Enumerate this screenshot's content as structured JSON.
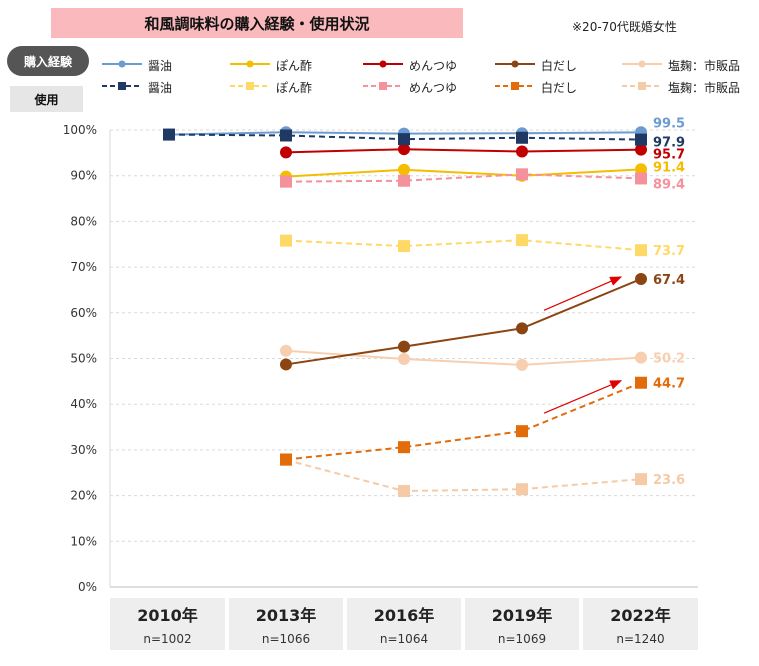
{
  "title": "和風調味料の購入経験・使用状況",
  "note": "※20-70代既婚女性",
  "badges": {
    "purchase": "購入経験",
    "use": "使用"
  },
  "colors": {
    "soy": "#6b9bd0",
    "ponzu": "#f5bd00",
    "mentsuyu": "#c00000",
    "shirodashi": "#8b4513",
    "shiokoji": "#f7cfb0",
    "soy_use": "#1f3864",
    "ponzu_use": "#ffd966",
    "mentsuyu_use": "#f4919a",
    "shirodashi_use": "#e36c0a",
    "shiokoji_use": "#f5cba7",
    "arrow": "#e00000",
    "title_bg": "#f9b9bd"
  },
  "chart_data": {
    "type": "line",
    "title": "和風調味料の購入経験・使用状況",
    "xlabel": "",
    "ylabel": "",
    "ylim": [
      0,
      100
    ],
    "yticks": [
      "0%",
      "10%",
      "20%",
      "30%",
      "40%",
      "50%",
      "60%",
      "70%",
      "80%",
      "90%",
      "100%"
    ],
    "categories": [
      "2010年",
      "2013年",
      "2016年",
      "2019年",
      "2022年"
    ],
    "sample_sizes": [
      "n=1002",
      "n=1066",
      "n=1064",
      "n=1069",
      "n=1240"
    ],
    "series": [
      {
        "name": "醤油",
        "group": "購入経験",
        "key": "soy",
        "marker": "circle",
        "dashed": false,
        "values": [
          99.0,
          99.5,
          99.2,
          99.3,
          99.5
        ],
        "end_label": "99.5"
      },
      {
        "name": "ぽん酢",
        "group": "購入経験",
        "key": "ponzu",
        "marker": "circle",
        "dashed": false,
        "values": [
          null,
          89.8,
          91.3,
          90.0,
          91.4
        ],
        "end_label": "91.4"
      },
      {
        "name": "めんつゆ",
        "group": "購入経験",
        "key": "mentsuyu",
        "marker": "circle",
        "dashed": false,
        "values": [
          null,
          95.1,
          95.8,
          95.3,
          95.7
        ],
        "end_label": "95.7"
      },
      {
        "name": "白だし",
        "group": "購入経験",
        "key": "shirodashi",
        "marker": "circle",
        "dashed": false,
        "values": [
          null,
          48.7,
          52.6,
          56.6,
          67.4
        ],
        "end_label": "67.4"
      },
      {
        "name": "塩麹：市販品",
        "group": "購入経験",
        "key": "shiokoji",
        "marker": "circle",
        "dashed": false,
        "values": [
          null,
          51.7,
          49.9,
          48.6,
          50.2
        ],
        "end_label": "50.2"
      },
      {
        "name": "醤油",
        "group": "使用",
        "key": "soy_use",
        "marker": "square",
        "dashed": true,
        "values": [
          99.0,
          98.8,
          98.0,
          98.3,
          97.9
        ],
        "end_label": "97.9"
      },
      {
        "name": "ぽん酢",
        "group": "使用",
        "key": "ponzu_use",
        "marker": "square",
        "dashed": true,
        "values": [
          null,
          75.8,
          74.6,
          75.9,
          73.7
        ],
        "end_label": "73.7"
      },
      {
        "name": "めんつゆ",
        "group": "使用",
        "key": "mentsuyu_use",
        "marker": "square",
        "dashed": true,
        "values": [
          null,
          88.7,
          88.9,
          90.3,
          89.4
        ],
        "end_label": "89.4"
      },
      {
        "name": "白だし",
        "group": "使用",
        "key": "shirodashi_use",
        "marker": "square",
        "dashed": true,
        "values": [
          null,
          27.9,
          30.6,
          34.1,
          44.7
        ],
        "end_label": "44.7"
      },
      {
        "name": "塩麹：市販品",
        "group": "使用",
        "key": "shiokoji_use",
        "marker": "square",
        "dashed": true,
        "values": [
          null,
          27.8,
          21.0,
          21.4,
          23.6
        ],
        "end_label": "23.6"
      }
    ],
    "annotations": [
      {
        "type": "arrow",
        "series": "白だし",
        "group": "購入経験",
        "from": "2019年",
        "to": "2022年"
      },
      {
        "type": "arrow",
        "series": "白だし",
        "group": "使用",
        "from": "2019年",
        "to": "2022年"
      }
    ]
  }
}
